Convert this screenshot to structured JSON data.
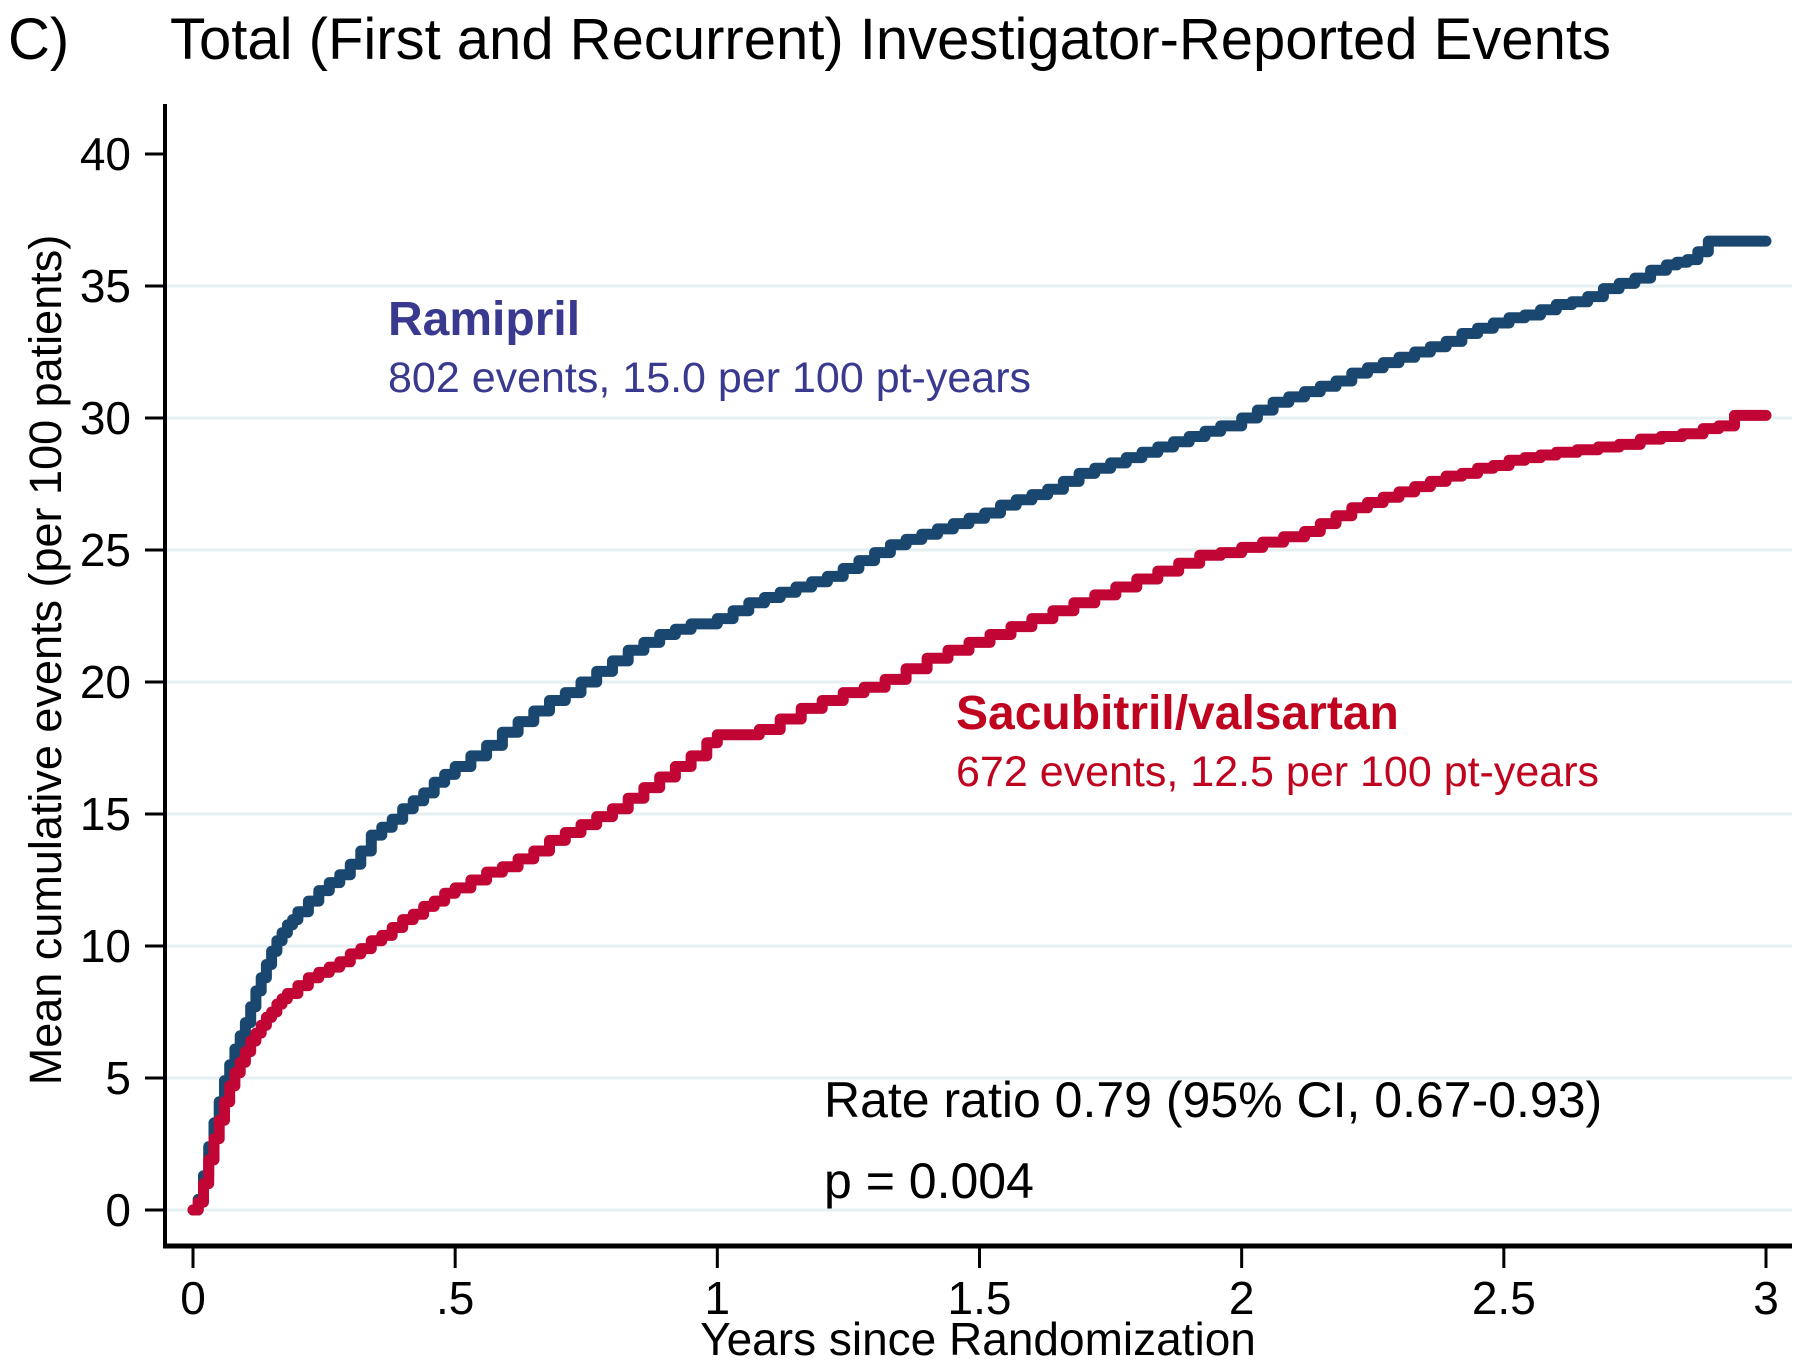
{
  "panel_label": "C)",
  "colors": {
    "ramipril_curve": "#1a476f",
    "sacubitril_curve": "#c10534",
    "ramipril_text": "#39398f",
    "sacubitril_text": "#c00420",
    "gridline": "#e6eff1",
    "axis": "#000000"
  },
  "chart_data": {
    "type": "line",
    "step": true,
    "title": "Total (First and Recurrent) Investigator-Reported Events",
    "xlabel": "Years since Randomization",
    "ylabel": "Mean cumulative events (per 100 patients)",
    "xlim": [
      0,
      3
    ],
    "ylim": [
      0,
      40
    ],
    "grid": true,
    "gridline_values": [
      0,
      5,
      10,
      15,
      20,
      25,
      30,
      35
    ],
    "y_ticks": [
      {
        "value": 0,
        "label": "0"
      },
      {
        "value": 5,
        "label": "5"
      },
      {
        "value": 10,
        "label": "10"
      },
      {
        "value": 15,
        "label": "15"
      },
      {
        "value": 20,
        "label": "20"
      },
      {
        "value": 25,
        "label": "25"
      },
      {
        "value": 30,
        "label": "30"
      },
      {
        "value": 35,
        "label": "35"
      },
      {
        "value": 40,
        "label": "40"
      }
    ],
    "x_ticks": [
      {
        "value": 0,
        "label": "0"
      },
      {
        "value": 0.5,
        "label": ".5"
      },
      {
        "value": 1,
        "label": "1"
      },
      {
        "value": 1.5,
        "label": "1.5"
      },
      {
        "value": 2,
        "label": "2"
      },
      {
        "value": 2.5,
        "label": "2.5"
      },
      {
        "value": 3,
        "label": "3"
      }
    ],
    "annotation": {
      "line1": "Rate ratio 0.79 (95% CI, 0.67-0.93)",
      "line2": "p = 0.004"
    },
    "series": [
      {
        "name": "Ramipril",
        "label_line1": "Ramipril",
        "label_line2": "802 events, 15.0 per 100 pt-years",
        "events": 802,
        "rate_per_100_pt_years": 15.0,
        "color": "#1a476f",
        "x": [
          0,
          0.01,
          0.02,
          0.03,
          0.04,
          0.05,
          0.06,
          0.07,
          0.08,
          0.09,
          0.1,
          0.11,
          0.12,
          0.13,
          0.14,
          0.15,
          0.16,
          0.17,
          0.18,
          0.19,
          0.2,
          0.22,
          0.24,
          0.26,
          0.28,
          0.3,
          0.32,
          0.34,
          0.36,
          0.38,
          0.4,
          0.42,
          0.44,
          0.46,
          0.48,
          0.5,
          0.53,
          0.56,
          0.59,
          0.62,
          0.65,
          0.68,
          0.71,
          0.74,
          0.77,
          0.8,
          0.83,
          0.86,
          0.89,
          0.92,
          0.95,
          1.0,
          1.03,
          1.06,
          1.09,
          1.12,
          1.15,
          1.18,
          1.21,
          1.24,
          1.27,
          1.3,
          1.33,
          1.36,
          1.39,
          1.42,
          1.45,
          1.48,
          1.51,
          1.54,
          1.57,
          1.6,
          1.63,
          1.66,
          1.69,
          1.72,
          1.75,
          1.78,
          1.81,
          1.84,
          1.87,
          1.9,
          1.93,
          1.96,
          2.0,
          2.03,
          2.06,
          2.09,
          2.12,
          2.15,
          2.18,
          2.21,
          2.24,
          2.27,
          2.3,
          2.33,
          2.36,
          2.39,
          2.42,
          2.45,
          2.48,
          2.51,
          2.54,
          2.57,
          2.6,
          2.63,
          2.66,
          2.69,
          2.72,
          2.75,
          2.78,
          2.81,
          2.83,
          2.85,
          2.87,
          2.89,
          3.0
        ],
        "y": [
          0,
          0.4,
          1.3,
          2.4,
          3.3,
          4.1,
          4.9,
          5.5,
          6.1,
          6.6,
          7.1,
          7.7,
          8.3,
          8.8,
          9.3,
          9.8,
          10.2,
          10.5,
          10.8,
          11.0,
          11.3,
          11.7,
          12.1,
          12.4,
          12.7,
          13.1,
          13.6,
          14.2,
          14.5,
          14.8,
          15.2,
          15.5,
          15.8,
          16.2,
          16.5,
          16.8,
          17.2,
          17.6,
          18.1,
          18.5,
          18.9,
          19.3,
          19.6,
          20.0,
          20.4,
          20.8,
          21.2,
          21.5,
          21.8,
          22.0,
          22.2,
          22.4,
          22.7,
          23.0,
          23.2,
          23.4,
          23.6,
          23.8,
          24.0,
          24.3,
          24.6,
          24.9,
          25.2,
          25.4,
          25.6,
          25.8,
          26.0,
          26.2,
          26.4,
          26.7,
          26.9,
          27.1,
          27.3,
          27.6,
          27.9,
          28.1,
          28.3,
          28.5,
          28.7,
          28.9,
          29.1,
          29.3,
          29.5,
          29.7,
          30.0,
          30.3,
          30.6,
          30.8,
          31.0,
          31.2,
          31.4,
          31.7,
          31.9,
          32.1,
          32.3,
          32.5,
          32.7,
          32.9,
          33.2,
          33.4,
          33.6,
          33.8,
          33.9,
          34.1,
          34.3,
          34.4,
          34.6,
          34.9,
          35.1,
          35.3,
          35.6,
          35.8,
          35.9,
          36.0,
          36.3,
          36.7,
          36.7
        ]
      },
      {
        "name": "Sacubitril/valsartan",
        "label_line1": "Sacubitril/valsartan",
        "label_line2": "672 events, 12.5 per 100 pt-years",
        "events": 672,
        "rate_per_100_pt_years": 12.5,
        "color": "#c10534",
        "x": [
          0,
          0.01,
          0.02,
          0.03,
          0.04,
          0.05,
          0.06,
          0.07,
          0.08,
          0.09,
          0.1,
          0.11,
          0.12,
          0.13,
          0.14,
          0.15,
          0.16,
          0.17,
          0.18,
          0.2,
          0.22,
          0.24,
          0.26,
          0.28,
          0.3,
          0.32,
          0.34,
          0.36,
          0.38,
          0.4,
          0.42,
          0.44,
          0.46,
          0.48,
          0.5,
          0.53,
          0.56,
          0.59,
          0.62,
          0.65,
          0.68,
          0.71,
          0.74,
          0.77,
          0.8,
          0.83,
          0.86,
          0.89,
          0.92,
          0.95,
          0.98,
          1.0,
          1.08,
          1.12,
          1.16,
          1.2,
          1.24,
          1.28,
          1.32,
          1.36,
          1.4,
          1.44,
          1.48,
          1.52,
          1.56,
          1.6,
          1.64,
          1.68,
          1.72,
          1.76,
          1.8,
          1.84,
          1.88,
          1.92,
          1.96,
          2.0,
          2.04,
          2.08,
          2.12,
          2.15,
          2.18,
          2.21,
          2.24,
          2.27,
          2.3,
          2.33,
          2.36,
          2.39,
          2.42,
          2.45,
          2.48,
          2.51,
          2.54,
          2.57,
          2.6,
          2.64,
          2.68,
          2.72,
          2.76,
          2.8,
          2.84,
          2.88,
          2.91,
          2.94,
          3.0
        ],
        "y": [
          0,
          0.3,
          1.0,
          1.9,
          2.7,
          3.4,
          4.1,
          4.7,
          5.2,
          5.6,
          6.0,
          6.4,
          6.7,
          7.0,
          7.3,
          7.5,
          7.8,
          8.0,
          8.2,
          8.5,
          8.8,
          9.0,
          9.2,
          9.4,
          9.7,
          9.9,
          10.2,
          10.4,
          10.7,
          11.0,
          11.2,
          11.5,
          11.7,
          12.0,
          12.2,
          12.5,
          12.8,
          13.0,
          13.3,
          13.6,
          14.0,
          14.3,
          14.6,
          14.9,
          15.2,
          15.6,
          16.0,
          16.4,
          16.8,
          17.2,
          17.7,
          18.0,
          18.2,
          18.6,
          19.0,
          19.3,
          19.6,
          19.8,
          20.1,
          20.5,
          20.9,
          21.2,
          21.5,
          21.8,
          22.1,
          22.4,
          22.7,
          23.0,
          23.3,
          23.6,
          23.9,
          24.2,
          24.5,
          24.8,
          24.9,
          25.1,
          25.3,
          25.5,
          25.7,
          26.0,
          26.3,
          26.6,
          26.8,
          27.0,
          27.2,
          27.4,
          27.6,
          27.8,
          27.9,
          28.1,
          28.2,
          28.4,
          28.5,
          28.6,
          28.7,
          28.8,
          28.9,
          29.0,
          29.2,
          29.3,
          29.4,
          29.6,
          29.7,
          30.1,
          30.1
        ]
      }
    ],
    "legend_position": "inline-labels"
  }
}
